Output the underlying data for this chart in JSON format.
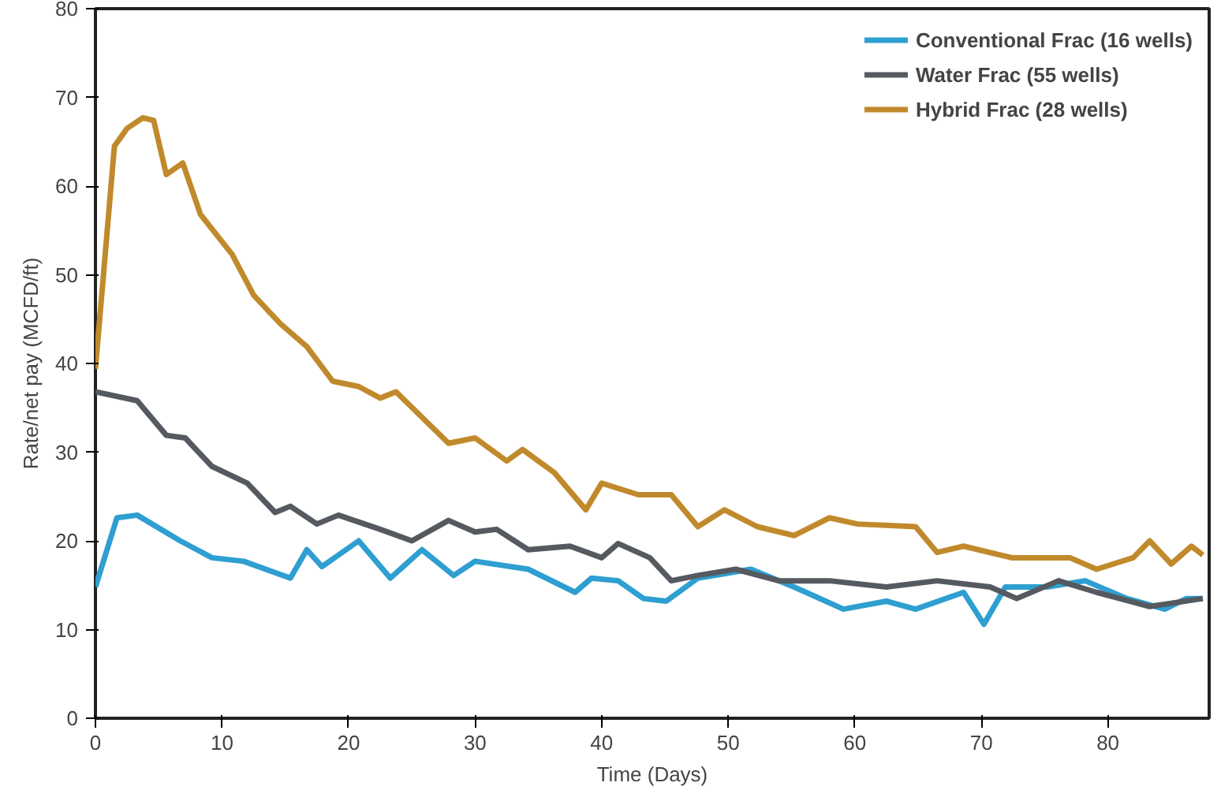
{
  "chart_data": {
    "type": "line",
    "xlabel": "Time (Days)",
    "ylabel": "Rate/net pay (MCFD/ft)",
    "xlim": [
      0,
      88
    ],
    "ylim": [
      0,
      80
    ],
    "xticks": [
      0,
      10,
      20,
      30,
      40,
      50,
      60,
      70,
      80
    ],
    "yticks": [
      0,
      10,
      20,
      30,
      40,
      50,
      60,
      70,
      80
    ],
    "grid": false,
    "legend": "top right",
    "marker": "none",
    "line_style": "solid",
    "series": [
      {
        "name": "Conventional Frac (16 wells)",
        "color": "#2e9fd0",
        "x": [
          0,
          1.7,
          3.3,
          6.7,
          9.2,
          11.7,
          15.4,
          16.7,
          17.9,
          20.8,
          23.3,
          25.8,
          28.3,
          30,
          34.2,
          37.9,
          39.2,
          41.3,
          43.3,
          45.1,
          47.6,
          51.8,
          55.2,
          59.1,
          62.5,
          64.8,
          68.6,
          70.2,
          71.9,
          75.2,
          78.2,
          81.5,
          84.5,
          86.2,
          87.5
        ],
        "values": [
          14.8,
          22.6,
          22.9,
          20,
          18.1,
          17.7,
          15.8,
          19,
          17.1,
          20,
          15.8,
          19,
          16.1,
          17.7,
          16.8,
          14.2,
          15.8,
          15.5,
          13.5,
          13.2,
          15.8,
          16.8,
          14.8,
          12.3,
          13.2,
          12.3,
          14.2,
          10.6,
          14.8,
          14.8,
          15.5,
          13.5,
          12.3,
          13.5,
          13.5
        ]
      },
      {
        "name": "Water Frac (55 wells)",
        "color": "#555a60",
        "x": [
          0,
          3.3,
          5.6,
          7.1,
          9.2,
          12,
          14.2,
          15.4,
          17.5,
          19.2,
          22.5,
          25,
          27.9,
          30,
          31.7,
          34.2,
          37.5,
          40,
          41.3,
          43.8,
          45.5,
          47.6,
          50.6,
          54,
          58,
          62.5,
          66.5,
          70.7,
          72.8,
          76.1,
          79.1,
          83.3,
          87.5
        ],
        "values": [
          36.8,
          35.8,
          31.9,
          31.6,
          28.4,
          26.5,
          23.2,
          23.9,
          21.9,
          22.9,
          21.3,
          20,
          22.3,
          21,
          21.3,
          19,
          19.4,
          18.1,
          19.7,
          18.1,
          15.5,
          16.1,
          16.8,
          15.5,
          15.5,
          14.8,
          15.5,
          14.8,
          13.5,
          15.5,
          14.2,
          12.6,
          13.5
        ]
      },
      {
        "name": "Hybrid Frac (28 wells)",
        "color": "#c08a2c",
        "x": [
          0,
          1.5,
          2.5,
          3.75,
          4.6,
          5.6,
          6.9,
          8.3,
          10.8,
          12.5,
          14.6,
          16.7,
          18.75,
          20.8,
          22.5,
          23.75,
          27.9,
          30,
          32.5,
          33.75,
          36.25,
          38.75,
          40,
          42.9,
          45.5,
          47.6,
          49.7,
          52.3,
          55.2,
          58,
          60.2,
          64.8,
          66.5,
          68.6,
          72.4,
          77,
          79.1,
          82,
          83.3,
          85,
          86.6,
          87.5
        ],
        "values": [
          39.4,
          64.5,
          66.5,
          67.7,
          67.4,
          61.3,
          62.6,
          56.8,
          52.3,
          47.7,
          44.5,
          41.9,
          38,
          37.4,
          36.1,
          36.8,
          31,
          31.6,
          29,
          30.3,
          27.7,
          23.5,
          26.5,
          25.2,
          25.2,
          21.6,
          23.5,
          21.6,
          20.6,
          22.6,
          21.9,
          21.6,
          18.7,
          19.4,
          18.1,
          18.1,
          16.8,
          18.1,
          20,
          17.4,
          19.4,
          18.4
        ]
      }
    ]
  }
}
